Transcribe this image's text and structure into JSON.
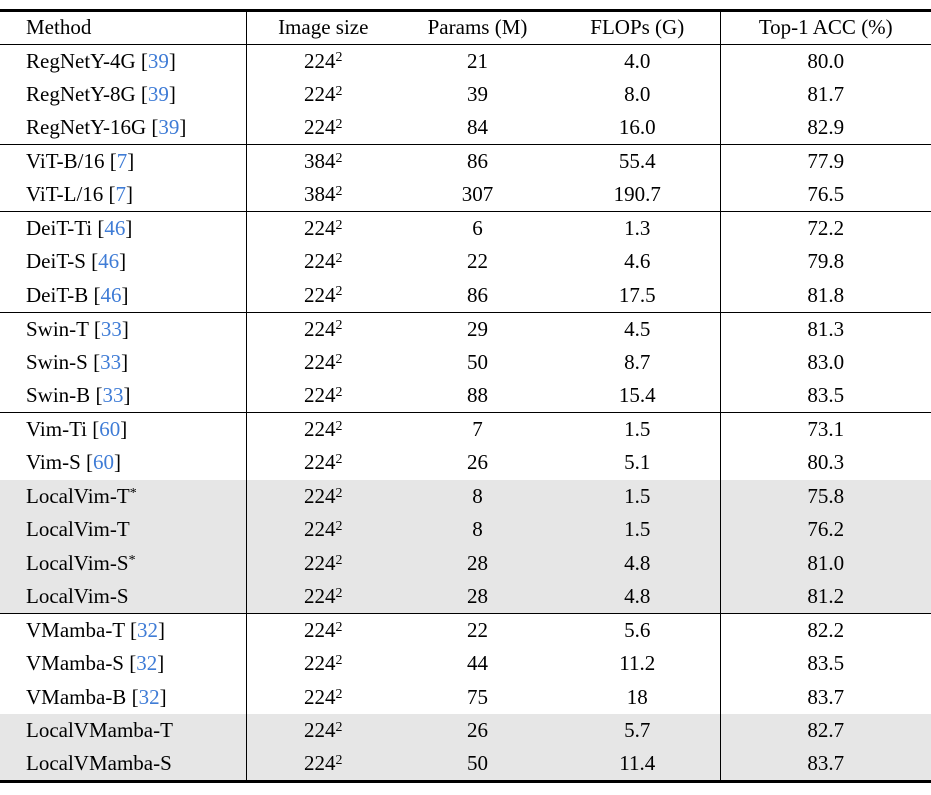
{
  "colors": {
    "citation_blue": "#3f7cd6",
    "row_shade": "#e6e6e6",
    "rule_black": "#000000",
    "text_black": "#000000"
  },
  "table": {
    "columns": [
      "Method",
      "Image size",
      "Params (M)",
      "FLOPs (G)",
      "Top-1 ACC (%)"
    ],
    "rows": [
      {
        "method": "RegNetY-4G",
        "method_sup": "",
        "cite": "39",
        "image_size": "224",
        "size_exp": "2",
        "params": "21",
        "flops": "4.0",
        "acc": "80.0",
        "shaded": false,
        "group_start": false
      },
      {
        "method": "RegNetY-8G",
        "method_sup": "",
        "cite": "39",
        "image_size": "224",
        "size_exp": "2",
        "params": "39",
        "flops": "8.0",
        "acc": "81.7",
        "shaded": false,
        "group_start": false
      },
      {
        "method": "RegNetY-16G",
        "method_sup": "",
        "cite": "39",
        "image_size": "224",
        "size_exp": "2",
        "params": "84",
        "flops": "16.0",
        "acc": "82.9",
        "shaded": false,
        "group_start": false
      },
      {
        "method": "ViT-B/16",
        "method_sup": "",
        "cite": "7",
        "image_size": "384",
        "size_exp": "2",
        "params": "86",
        "flops": "55.4",
        "acc": "77.9",
        "shaded": false,
        "group_start": true
      },
      {
        "method": "ViT-L/16",
        "method_sup": "",
        "cite": "7",
        "image_size": "384",
        "size_exp": "2",
        "params": "307",
        "flops": "190.7",
        "acc": "76.5",
        "shaded": false,
        "group_start": false
      },
      {
        "method": "DeiT-Ti",
        "method_sup": "",
        "cite": "46",
        "image_size": "224",
        "size_exp": "2",
        "params": "6",
        "flops": "1.3",
        "acc": "72.2",
        "shaded": false,
        "group_start": true
      },
      {
        "method": "DeiT-S",
        "method_sup": "",
        "cite": "46",
        "image_size": "224",
        "size_exp": "2",
        "params": "22",
        "flops": "4.6",
        "acc": "79.8",
        "shaded": false,
        "group_start": false
      },
      {
        "method": "DeiT-B",
        "method_sup": "",
        "cite": "46",
        "image_size": "224",
        "size_exp": "2",
        "params": "86",
        "flops": "17.5",
        "acc": "81.8",
        "shaded": false,
        "group_start": false
      },
      {
        "method": "Swin-T",
        "method_sup": "",
        "cite": "33",
        "image_size": "224",
        "size_exp": "2",
        "params": "29",
        "flops": "4.5",
        "acc": "81.3",
        "shaded": false,
        "group_start": true
      },
      {
        "method": "Swin-S",
        "method_sup": "",
        "cite": "33",
        "image_size": "224",
        "size_exp": "2",
        "params": "50",
        "flops": "8.7",
        "acc": "83.0",
        "shaded": false,
        "group_start": false
      },
      {
        "method": "Swin-B",
        "method_sup": "",
        "cite": "33",
        "image_size": "224",
        "size_exp": "2",
        "params": "88",
        "flops": "15.4",
        "acc": "83.5",
        "shaded": false,
        "group_start": false
      },
      {
        "method": "Vim-Ti",
        "method_sup": "",
        "cite": "60",
        "image_size": "224",
        "size_exp": "2",
        "params": "7",
        "flops": "1.5",
        "acc": "73.1",
        "shaded": false,
        "group_start": true
      },
      {
        "method": "Vim-S",
        "method_sup": "",
        "cite": "60",
        "image_size": "224",
        "size_exp": "2",
        "params": "26",
        "flops": "5.1",
        "acc": "80.3",
        "shaded": false,
        "group_start": false
      },
      {
        "method": "LocalVim-T",
        "method_sup": "*",
        "cite": "",
        "image_size": "224",
        "size_exp": "2",
        "params": "8",
        "flops": "1.5",
        "acc": "75.8",
        "shaded": true,
        "group_start": false
      },
      {
        "method": "LocalVim-T",
        "method_sup": "",
        "cite": "",
        "image_size": "224",
        "size_exp": "2",
        "params": "8",
        "flops": "1.5",
        "acc": "76.2",
        "shaded": true,
        "group_start": false
      },
      {
        "method": "LocalVim-S",
        "method_sup": "*",
        "cite": "",
        "image_size": "224",
        "size_exp": "2",
        "params": "28",
        "flops": "4.8",
        "acc": "81.0",
        "shaded": true,
        "group_start": false
      },
      {
        "method": "LocalVim-S",
        "method_sup": "",
        "cite": "",
        "image_size": "224",
        "size_exp": "2",
        "params": "28",
        "flops": "4.8",
        "acc": "81.2",
        "shaded": true,
        "group_start": false
      },
      {
        "method": "VMamba-T",
        "method_sup": "",
        "cite": "32",
        "image_size": "224",
        "size_exp": "2",
        "params": "22",
        "flops": "5.6",
        "acc": "82.2",
        "shaded": false,
        "group_start": true
      },
      {
        "method": "VMamba-S",
        "method_sup": "",
        "cite": "32",
        "image_size": "224",
        "size_exp": "2",
        "params": "44",
        "flops": "11.2",
        "acc": "83.5",
        "shaded": false,
        "group_start": false
      },
      {
        "method": "VMamba-B",
        "method_sup": "",
        "cite": "32",
        "image_size": "224",
        "size_exp": "2",
        "params": "75",
        "flops": "18",
        "acc": "83.7",
        "shaded": false,
        "group_start": false
      },
      {
        "method": "LocalVMamba-T",
        "method_sup": "",
        "cite": "",
        "image_size": "224",
        "size_exp": "2",
        "params": "26",
        "flops": "5.7",
        "acc": "82.7",
        "shaded": true,
        "group_start": false
      },
      {
        "method": "LocalVMamba-S",
        "method_sup": "",
        "cite": "",
        "image_size": "224",
        "size_exp": "2",
        "params": "50",
        "flops": "11.4",
        "acc": "83.7",
        "shaded": true,
        "group_start": false
      }
    ]
  }
}
